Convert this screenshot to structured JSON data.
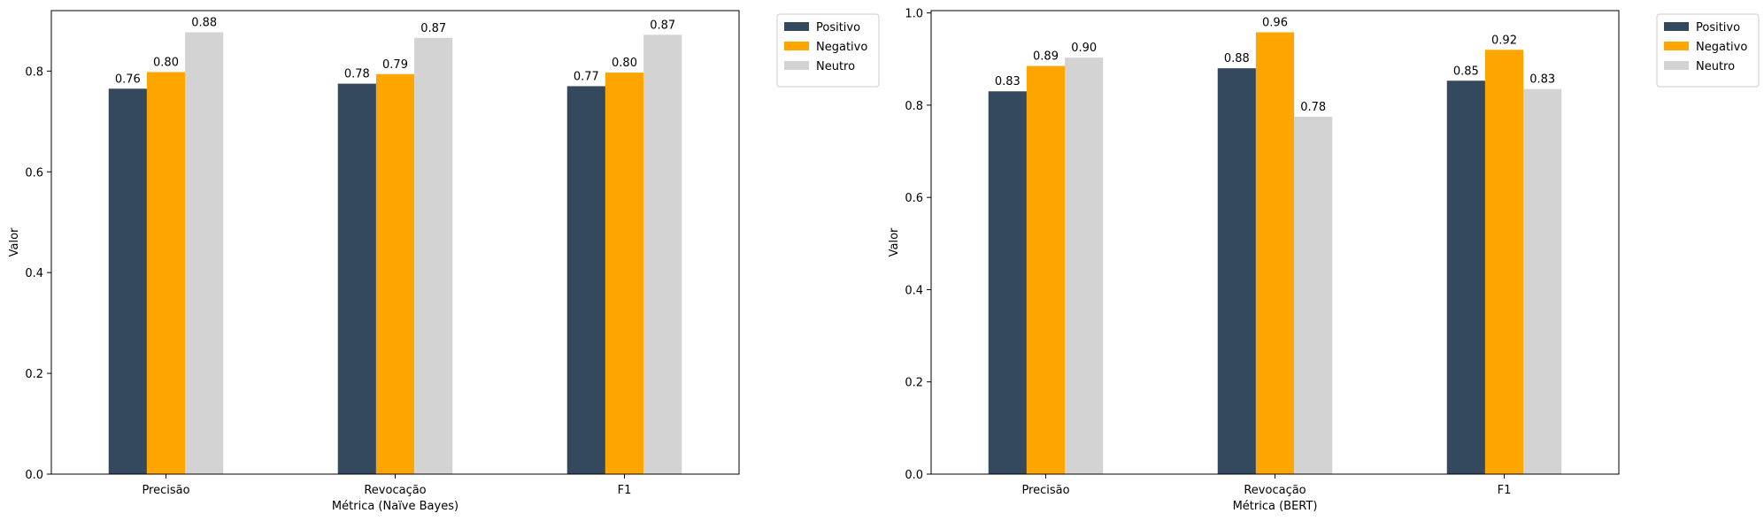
{
  "colors": {
    "Positivo": "#34495e",
    "Negativo": "#ffa500",
    "Neutro": "#d3d3d3"
  },
  "chart_data": [
    {
      "type": "bar",
      "categories": [
        "Precisão",
        "Revocação",
        "F1"
      ],
      "series": [
        {
          "name": "Positivo",
          "values": [
            0.765,
            0.775,
            0.77
          ]
        },
        {
          "name": "Negativo",
          "values": [
            0.798,
            0.794,
            0.797
          ]
        },
        {
          "name": "Neutro",
          "values": [
            0.877,
            0.866,
            0.872
          ]
        }
      ],
      "data_labels": [
        [
          "0.76",
          "0.78",
          "0.77"
        ],
        [
          "0.80",
          "0.79",
          "0.80"
        ],
        [
          "0.88",
          "0.87",
          "0.87"
        ]
      ],
      "xlabel": "Métrica (Naïve Bayes)",
      "ylabel": "Valor",
      "ylim": [
        0,
        0.92
      ],
      "yticks": [
        "0.0",
        "0.2",
        "0.4",
        "0.6",
        "0.8"
      ],
      "legend_position": "outside top-right",
      "grid": false
    },
    {
      "type": "bar",
      "categories": [
        "Precisão",
        "Revocação",
        "F1"
      ],
      "series": [
        {
          "name": "Positivo",
          "values": [
            0.83,
            0.88,
            0.853
          ]
        },
        {
          "name": "Negativo",
          "values": [
            0.885,
            0.958,
            0.92
          ]
        },
        {
          "name": "Neutro",
          "values": [
            0.903,
            0.775,
            0.835
          ]
        }
      ],
      "data_labels": [
        [
          "0.83",
          "0.88",
          "0.85"
        ],
        [
          "0.89",
          "0.96",
          "0.92"
        ],
        [
          "0.90",
          "0.78",
          "0.83"
        ]
      ],
      "xlabel": "Métrica (BERT)",
      "ylabel": "Valor",
      "ylim": [
        0,
        1.005
      ],
      "yticks": [
        "0.0",
        "0.2",
        "0.4",
        "0.6",
        "0.8",
        "1.0"
      ],
      "legend_position": "outside top-right",
      "grid": false
    }
  ]
}
